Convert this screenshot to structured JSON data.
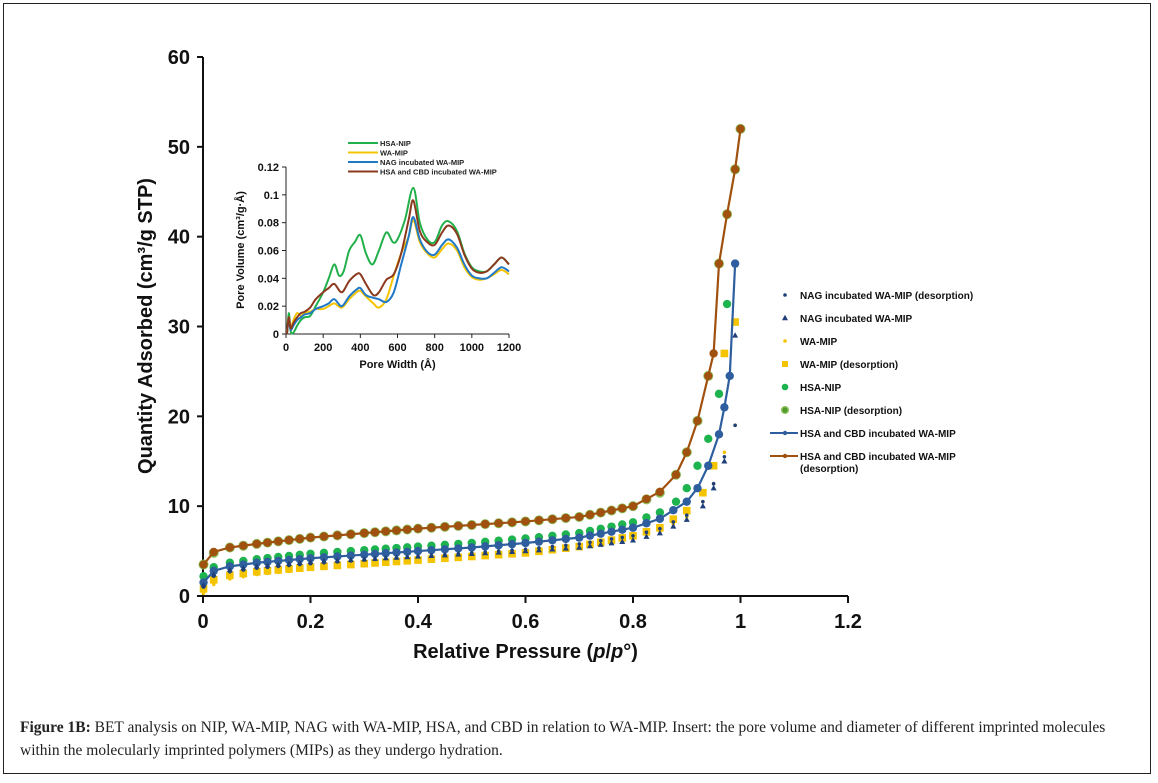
{
  "caption": {
    "label": "Figure 1B:",
    "text": " BET analysis on NIP, WA-MIP, NAG with WA-MIP, HSA, and CBD in relation to WA-MIP. Insert: the pore volume and diameter of different imprinted molecules within the molecularly imprinted polymers (MIPs) as they undergo hydration."
  },
  "chart_data": [
    {
      "type": "scatter",
      "title": "",
      "xlabel": "Relative Pressure (p/p°)",
      "xlabel_parts": [
        "Relative Pressure (",
        "p",
        "/",
        "p",
        "°)"
      ],
      "ylabel": "Quantity Adsorbed (cm³/g STP)",
      "xlim": [
        0,
        1.2
      ],
      "ylim": [
        0,
        60
      ],
      "xticks": [
        "0",
        "0.2",
        "0.4",
        "0.6",
        "0.8",
        "1",
        "1.2"
      ],
      "xtick_values": [
        0,
        0.2,
        0.4,
        0.6,
        0.8,
        1.0,
        1.2
      ],
      "yticks": [
        "0",
        "10",
        "20",
        "30",
        "40",
        "50",
        "60"
      ],
      "ytick_values": [
        0,
        10,
        20,
        30,
        40,
        50,
        60
      ],
      "grid": false,
      "legend_position": "right",
      "series": [
        {
          "name": "NAG incubated WA-MIP (desorption)",
          "marker": "dot",
          "color": "#1f3f7a",
          "line": false,
          "x": [
            0.001,
            0.02,
            0.05,
            0.1,
            0.2,
            0.3,
            0.4,
            0.5,
            0.6,
            0.7,
            0.8,
            0.85,
            0.9,
            0.93,
            0.95,
            0.97,
            0.99
          ],
          "y": [
            1.0,
            2.2,
            2.7,
            3.1,
            3.6,
            4.0,
            4.4,
            4.8,
            5.2,
            5.8,
            6.7,
            7.5,
            9.0,
            10.5,
            12.5,
            15.5,
            19.0
          ]
        },
        {
          "name": "NAG incubated WA-MIP",
          "marker": "triangle",
          "color": "#1f3f7a",
          "line": false,
          "x": [
            0.001,
            0.02,
            0.05,
            0.1,
            0.2,
            0.3,
            0.4,
            0.5,
            0.6,
            0.7,
            0.8,
            0.85,
            0.9,
            0.93,
            0.95,
            0.97,
            0.99
          ],
          "y": [
            1.2,
            2.4,
            2.9,
            3.3,
            3.8,
            4.1,
            4.4,
            4.7,
            5.0,
            5.4,
            6.2,
            7.0,
            8.5,
            10.0,
            12.0,
            15.0,
            29.0
          ]
        },
        {
          "name": "WA-MIP",
          "marker": "dot",
          "color": "#f5c400",
          "line": false,
          "x": [
            0.001,
            0.02,
            0.05,
            0.1,
            0.2,
            0.3,
            0.4,
            0.5,
            0.6,
            0.7,
            0.8,
            0.85,
            0.9,
            0.93,
            0.95,
            0.97,
            0.99
          ],
          "y": [
            0.3,
            1.3,
            1.9,
            2.4,
            3.0,
            3.4,
            3.8,
            4.2,
            4.7,
            5.3,
            6.4,
            7.2,
            8.8,
            10.5,
            12.5,
            16.0,
            19.0
          ]
        },
        {
          "name": "WA-MIP (desorption)",
          "marker": "square",
          "color": "#f5c400",
          "line": false,
          "x": [
            0.001,
            0.02,
            0.05,
            0.1,
            0.2,
            0.3,
            0.4,
            0.5,
            0.6,
            0.7,
            0.8,
            0.85,
            0.9,
            0.93,
            0.95,
            0.97,
            0.99
          ],
          "y": [
            0.8,
            1.8,
            2.3,
            2.7,
            3.2,
            3.6,
            4.0,
            4.4,
            4.8,
            5.5,
            6.7,
            7.6,
            9.5,
            11.5,
            14.5,
            27.0,
            30.5
          ]
        },
        {
          "name": "HSA-NIP",
          "marker": "circle",
          "color": "#1db34f",
          "line": false,
          "x": [
            0.001,
            0.02,
            0.05,
            0.1,
            0.2,
            0.3,
            0.4,
            0.5,
            0.6,
            0.7,
            0.8,
            0.85,
            0.88,
            0.9,
            0.92,
            0.94,
            0.96,
            0.975
          ],
          "y": [
            2.2,
            3.2,
            3.7,
            4.1,
            4.7,
            5.1,
            5.5,
            5.9,
            6.4,
            7.0,
            8.2,
            9.3,
            10.5,
            12.0,
            14.5,
            17.5,
            22.5,
            32.5
          ]
        },
        {
          "name": "HSA-NIP (desorption)",
          "marker": "circle-ring",
          "color": "#6aaa3a",
          "line": false,
          "x": [
            0.001,
            0.02,
            0.05,
            0.1,
            0.2,
            0.3,
            0.4,
            0.5,
            0.6,
            0.7,
            0.8,
            0.85,
            0.88,
            0.9,
            0.92,
            0.94,
            0.96,
            0.975,
            0.99,
            1.0
          ],
          "y": [
            3.5,
            4.8,
            5.4,
            5.8,
            6.5,
            7.0,
            7.5,
            7.9,
            8.3,
            8.8,
            10.0,
            11.5,
            13.5,
            16.0,
            19.5,
            24.5,
            37.0,
            42.5,
            47.5,
            52.0
          ]
        },
        {
          "name": "HSA and CBD incubated WA-MIP",
          "marker": "circle",
          "color": "#2e5e9e",
          "line": true,
          "x": [
            0.001,
            0.02,
            0.05,
            0.1,
            0.2,
            0.3,
            0.4,
            0.5,
            0.6,
            0.7,
            0.8,
            0.85,
            0.9,
            0.92,
            0.94,
            0.96,
            0.97,
            0.98,
            0.99
          ],
          "y": [
            1.5,
            2.8,
            3.3,
            3.7,
            4.2,
            4.6,
            5.0,
            5.4,
            5.9,
            6.5,
            7.6,
            8.6,
            10.5,
            12.0,
            14.5,
            18.0,
            21.0,
            24.5,
            37.0
          ]
        },
        {
          "name": "HSA and CBD incubated WA-MIP (desorption)",
          "marker": "circle",
          "color": "#a0500f",
          "line": true,
          "x": [
            0.001,
            0.02,
            0.05,
            0.1,
            0.2,
            0.3,
            0.4,
            0.5,
            0.6,
            0.7,
            0.8,
            0.85,
            0.88,
            0.9,
            0.92,
            0.94,
            0.95,
            0.96,
            0.975,
            0.99,
            1.0
          ],
          "y": [
            3.5,
            4.9,
            5.4,
            5.8,
            6.5,
            7.0,
            7.5,
            7.9,
            8.3,
            8.8,
            10.0,
            11.6,
            13.5,
            16.0,
            19.5,
            24.5,
            27.0,
            37.0,
            42.5,
            47.5,
            52.0
          ]
        }
      ]
    },
    {
      "type": "line",
      "title": "",
      "xlabel": "Pore Width (Å)",
      "ylabel": "Pore Volume (cm³/g·Å)",
      "xlim": [
        0,
        1200
      ],
      "ylim": [
        0,
        0.12
      ],
      "xticks": [
        "0",
        "200",
        "400",
        "600",
        "800",
        "1000",
        "1200"
      ],
      "xtick_values": [
        0,
        200,
        400,
        600,
        800,
        1000,
        1200
      ],
      "yticks": [
        "0",
        "0.02",
        "0.04",
        "0.06",
        "0.08",
        "0.1",
        "0.12"
      ],
      "ytick_values": [
        0,
        0.02,
        0.04,
        0.06,
        0.08,
        0.1,
        0.12
      ],
      "grid": false,
      "legend_position": "top-right",
      "series": [
        {
          "name": "HSA-NIP",
          "color": "#22b04b",
          "x": [
            5,
            15,
            25,
            40,
            60,
            80,
            100,
            130,
            160,
            200,
            230,
            260,
            285,
            310,
            340,
            370,
            400,
            430,
            465,
            500,
            540,
            575,
            600,
            640,
            685,
            720,
            760,
            800,
            840,
            875,
            920,
            960,
            1000,
            1040,
            1080,
            1120,
            1160,
            1200
          ],
          "y": [
            0.0,
            0.015,
            0.002,
            0.001,
            0.006,
            0.01,
            0.012,
            0.013,
            0.02,
            0.03,
            0.04,
            0.05,
            0.042,
            0.045,
            0.06,
            0.066,
            0.071,
            0.058,
            0.05,
            0.06,
            0.073,
            0.066,
            0.068,
            0.082,
            0.105,
            0.08,
            0.068,
            0.066,
            0.078,
            0.081,
            0.074,
            0.058,
            0.048,
            0.045,
            0.045,
            0.05,
            0.055,
            0.05
          ]
        },
        {
          "name": "WA-MIP",
          "color": "#f5c400",
          "x": [
            5,
            15,
            25,
            40,
            60,
            80,
            100,
            130,
            160,
            200,
            230,
            260,
            300,
            340,
            380,
            400,
            430,
            470,
            500,
            540,
            580,
            620,
            660,
            685,
            720,
            760,
            800,
            840,
            875,
            920,
            960,
            1000,
            1040,
            1080,
            1120,
            1160,
            1200
          ],
          "y": [
            0.0,
            0.012,
            0.004,
            0.01,
            0.015,
            0.013,
            0.015,
            0.016,
            0.018,
            0.018,
            0.02,
            0.022,
            0.019,
            0.025,
            0.03,
            0.031,
            0.027,
            0.022,
            0.019,
            0.025,
            0.042,
            0.058,
            0.07,
            0.082,
            0.066,
            0.058,
            0.055,
            0.061,
            0.065,
            0.06,
            0.048,
            0.041,
            0.039,
            0.04,
            0.043,
            0.046,
            0.043
          ]
        },
        {
          "name": "NAG incubated WA-MIP",
          "color": "#1f78c8",
          "x": [
            5,
            15,
            25,
            40,
            60,
            80,
            100,
            130,
            160,
            200,
            230,
            260,
            300,
            340,
            380,
            400,
            430,
            470,
            500,
            540,
            580,
            620,
            660,
            685,
            720,
            760,
            800,
            840,
            875,
            920,
            960,
            1000,
            1040,
            1080,
            1120,
            1160,
            1200
          ],
          "y": [
            0.0,
            0.01,
            0.003,
            0.006,
            0.01,
            0.012,
            0.014,
            0.015,
            0.018,
            0.02,
            0.022,
            0.025,
            0.02,
            0.027,
            0.032,
            0.033,
            0.028,
            0.026,
            0.025,
            0.023,
            0.03,
            0.05,
            0.07,
            0.084,
            0.068,
            0.059,
            0.057,
            0.064,
            0.068,
            0.062,
            0.05,
            0.042,
            0.04,
            0.04,
            0.044,
            0.048,
            0.045
          ]
        },
        {
          "name": "HSA and CBD incubated WA-MIP",
          "color": "#8b3a1e",
          "x": [
            5,
            15,
            25,
            40,
            60,
            80,
            100,
            130,
            160,
            200,
            230,
            260,
            300,
            340,
            380,
            400,
            430,
            470,
            500,
            540,
            580,
            620,
            660,
            685,
            720,
            760,
            800,
            840,
            875,
            920,
            960,
            1000,
            1040,
            1080,
            1120,
            1160,
            1200
          ],
          "y": [
            0.0,
            0.012,
            0.004,
            0.008,
            0.012,
            0.015,
            0.016,
            0.019,
            0.025,
            0.03,
            0.033,
            0.036,
            0.03,
            0.038,
            0.043,
            0.043,
            0.036,
            0.028,
            0.03,
            0.039,
            0.043,
            0.058,
            0.082,
            0.096,
            0.074,
            0.066,
            0.064,
            0.073,
            0.078,
            0.072,
            0.057,
            0.047,
            0.044,
            0.045,
            0.05,
            0.055,
            0.05
          ]
        }
      ]
    }
  ]
}
